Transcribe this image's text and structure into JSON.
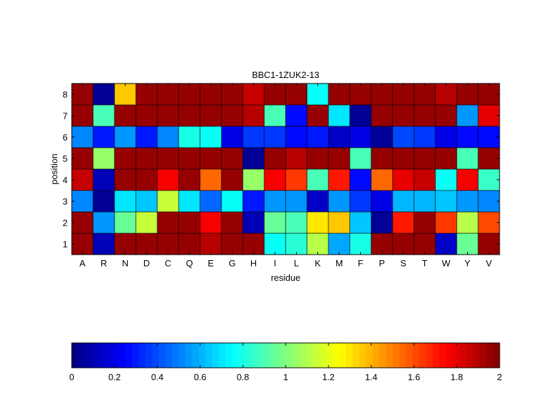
{
  "chart_data": {
    "type": "heatmap",
    "title": "BBC1-1ZUK2-13",
    "xlabel": "residue",
    "ylabel": "position",
    "x_categories": [
      "A",
      "R",
      "N",
      "D",
      "C",
      "Q",
      "E",
      "G",
      "H",
      "I",
      "L",
      "K",
      "M",
      "F",
      "P",
      "S",
      "T",
      "W",
      "Y",
      "V"
    ],
    "y_categories": [
      "1",
      "2",
      "3",
      "4",
      "5",
      "6",
      "7",
      "8"
    ],
    "colormap": "jet",
    "clim": [
      0,
      2
    ],
    "colorbar": {
      "location": "bottom",
      "tick_values": [
        0,
        0.2,
        0.4,
        0.6,
        0.8,
        1,
        1.2,
        1.4,
        1.6,
        1.8,
        2
      ],
      "tick_labels": [
        "0",
        "0.2",
        "0.4",
        "0.6",
        "0.8",
        "1",
        "1.2",
        "1.4",
        "1.6",
        "1.8",
        "2"
      ]
    },
    "values_by_position": [
      [
        1.95,
        0.1,
        1.95,
        1.95,
        1.95,
        1.95,
        1.9,
        1.95,
        1.95,
        0.78,
        0.82,
        1.1,
        0.58,
        0.8,
        1.95,
        1.95,
        1.95,
        0.15,
        0.95,
        1.95
      ],
      [
        1.95,
        0.55,
        0.95,
        1.15,
        1.95,
        1.95,
        1.75,
        1.95,
        0.1,
        0.95,
        0.9,
        1.3,
        1.35,
        0.65,
        0.05,
        1.7,
        1.95,
        1.65,
        1.1,
        1.6
      ],
      [
        0.5,
        0.05,
        0.7,
        0.65,
        1.15,
        0.7,
        0.45,
        0.75,
        0.3,
        0.55,
        0.55,
        0.15,
        0.55,
        0.35,
        0.2,
        0.6,
        0.6,
        0.65,
        0.55,
        0.5
      ],
      [
        1.85,
        0.1,
        1.95,
        1.95,
        1.75,
        1.95,
        1.55,
        1.95,
        1.05,
        1.75,
        1.65,
        0.9,
        1.7,
        0.25,
        1.55,
        1.8,
        1.85,
        0.75,
        1.75,
        0.85
      ],
      [
        1.95,
        1.05,
        1.95,
        1.95,
        1.95,
        1.95,
        1.95,
        1.95,
        0.05,
        1.95,
        1.9,
        1.95,
        1.95,
        0.9,
        1.95,
        1.95,
        1.95,
        1.95,
        0.9,
        1.95
      ],
      [
        0.5,
        0.3,
        0.55,
        0.3,
        0.5,
        0.8,
        0.75,
        0.2,
        0.35,
        0.35,
        0.25,
        0.3,
        0.15,
        0.2,
        0.05,
        0.4,
        0.35,
        0.2,
        0.25,
        0.25
      ],
      [
        1.95,
        0.9,
        1.95,
        1.95,
        1.95,
        1.95,
        1.95,
        1.95,
        1.9,
        0.9,
        0.25,
        1.95,
        0.7,
        0.05,
        1.95,
        1.95,
        1.95,
        1.95,
        0.55,
        1.8
      ],
      [
        1.95,
        0.05,
        1.35,
        1.95,
        1.95,
        1.95,
        1.95,
        1.95,
        1.85,
        1.95,
        1.95,
        0.75,
        1.95,
        1.95,
        1.95,
        1.95,
        1.95,
        1.9,
        1.95,
        1.95
      ]
    ]
  }
}
